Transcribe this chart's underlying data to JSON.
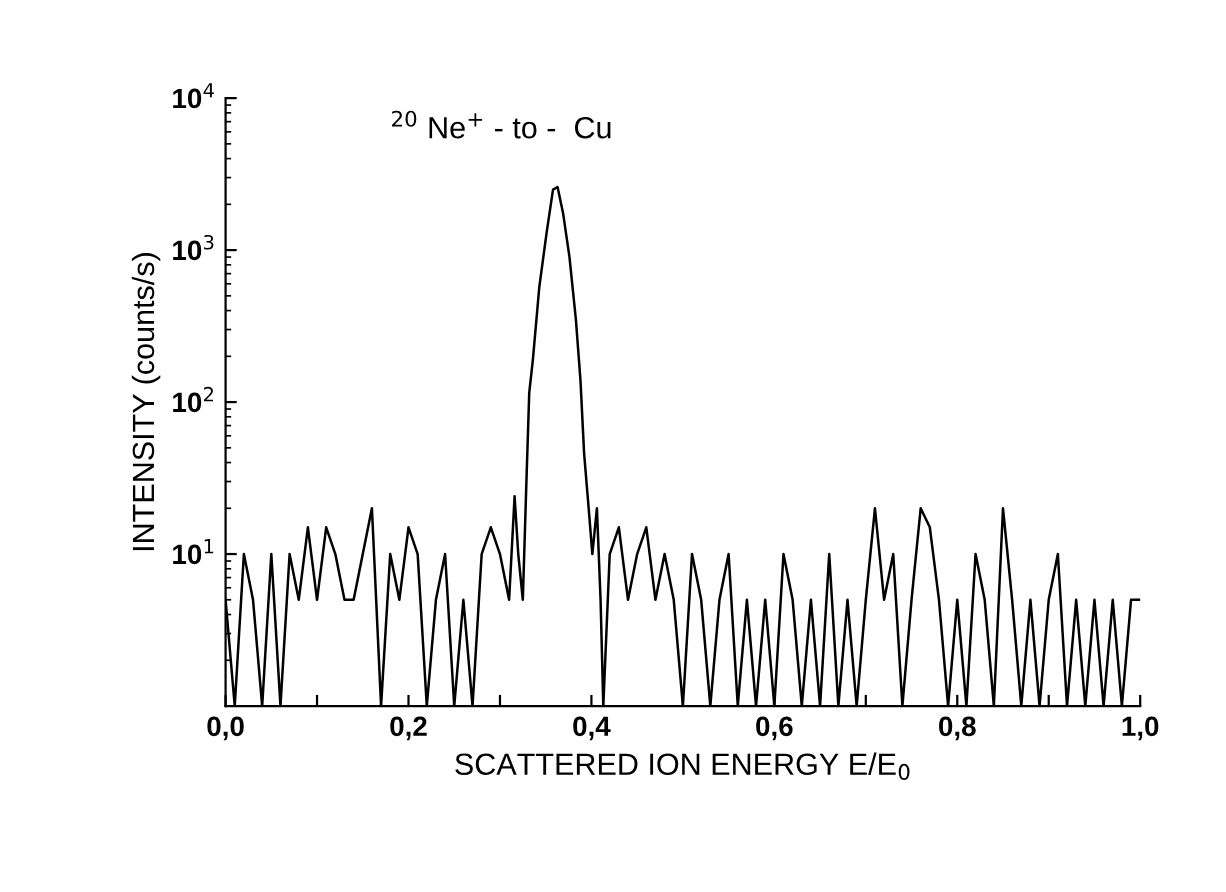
{
  "chart_data": {
    "type": "line",
    "xlabel": "SCATTERED ION ENERGY E/E$_{0}$",
    "ylabel": "INTENSITY (counts/s)",
    "annotations": [
      "$^{20}$ Ne$^{+}$ - to -  Cu"
    ],
    "log": "y",
    "grid": false,
    "legend": false,
    "marker": "none",
    "line_style": "solid",
    "xlim": [
      0,
      1
    ],
    "ylim": [
      1,
      10000
    ],
    "xticks": [
      {
        "value": 0,
        "label": "0,0"
      },
      {
        "value": 0.1,
        "label": null
      },
      {
        "value": 0.2,
        "label": "0,2"
      },
      {
        "value": 0.3,
        "label": null
      },
      {
        "value": 0.4,
        "label": "0,4"
      },
      {
        "value": 0.5,
        "label": null
      },
      {
        "value": 0.6,
        "label": "0,6"
      },
      {
        "value": 0.7,
        "label": null
      },
      {
        "value": 0.8,
        "label": "0,8"
      },
      {
        "value": 0.9,
        "label": null
      },
      {
        "value": 1,
        "label": "1,0"
      }
    ],
    "yticks": [
      {
        "value": 10,
        "label": "10$^{1}$"
      },
      {
        "value": 100,
        "label": "10$^{2}$"
      },
      {
        "value": 1000,
        "label": "10$^{3}$"
      },
      {
        "value": 10000,
        "label": "10$^{4}$"
      }
    ],
    "series": [
      {
        "color": "#000000",
        "x": [
          0.0,
          0.01,
          0.02,
          0.03,
          0.04,
          0.05,
          0.06,
          0.07,
          0.08,
          0.09,
          0.1,
          0.11,
          0.12,
          0.13,
          0.14,
          0.15,
          0.16,
          0.17,
          0.18,
          0.19,
          0.2,
          0.21,
          0.22,
          0.23,
          0.24,
          0.25,
          0.26,
          0.27,
          0.28,
          0.29,
          0.3,
          0.31,
          0.316,
          0.32,
          0.325,
          0.329,
          0.332,
          0.336,
          0.343,
          0.351,
          0.358,
          0.363,
          0.369,
          0.376,
          0.383,
          0.388,
          0.392,
          0.397,
          0.401,
          0.406,
          0.41,
          0.413,
          0.42,
          0.43,
          0.44,
          0.45,
          0.46,
          0.47,
          0.48,
          0.49,
          0.5,
          0.51,
          0.52,
          0.53,
          0.54,
          0.55,
          0.56,
          0.57,
          0.58,
          0.59,
          0.6,
          0.61,
          0.62,
          0.63,
          0.64,
          0.65,
          0.66,
          0.67,
          0.68,
          0.69,
          0.7,
          0.71,
          0.72,
          0.73,
          0.74,
          0.75,
          0.76,
          0.77,
          0.78,
          0.79,
          0.8,
          0.81,
          0.82,
          0.83,
          0.84,
          0.85,
          0.86,
          0.87,
          0.88,
          0.89,
          0.9,
          0.91,
          0.92,
          0.93,
          0.94,
          0.95,
          0.96,
          0.97,
          0.98,
          0.99,
          1.0
        ],
        "values": [
          5,
          1,
          10,
          5,
          1,
          10,
          1,
          10,
          5,
          15,
          5,
          15,
          10,
          5,
          5,
          10,
          20,
          1,
          10,
          5,
          15,
          10,
          1,
          5,
          10,
          1,
          5,
          1,
          10,
          15,
          10,
          5,
          24,
          10,
          5,
          31,
          115,
          190,
          570,
          1300,
          2500,
          2600,
          1750,
          900,
          350,
          140,
          46,
          20,
          10,
          20,
          5,
          1,
          10,
          15,
          5,
          10,
          15,
          5,
          10,
          5,
          1,
          10,
          5,
          1,
          5,
          10,
          1,
          5,
          1,
          5,
          1,
          10,
          5,
          1,
          5,
          1,
          10,
          1,
          5,
          1,
          5,
          20,
          5,
          10,
          1,
          5,
          20,
          15,
          5,
          1,
          5,
          1,
          10,
          5,
          1,
          20,
          5,
          1,
          5,
          1,
          5,
          10,
          1,
          5,
          1,
          5,
          1,
          5,
          1,
          5,
          5
        ]
      }
    ]
  }
}
